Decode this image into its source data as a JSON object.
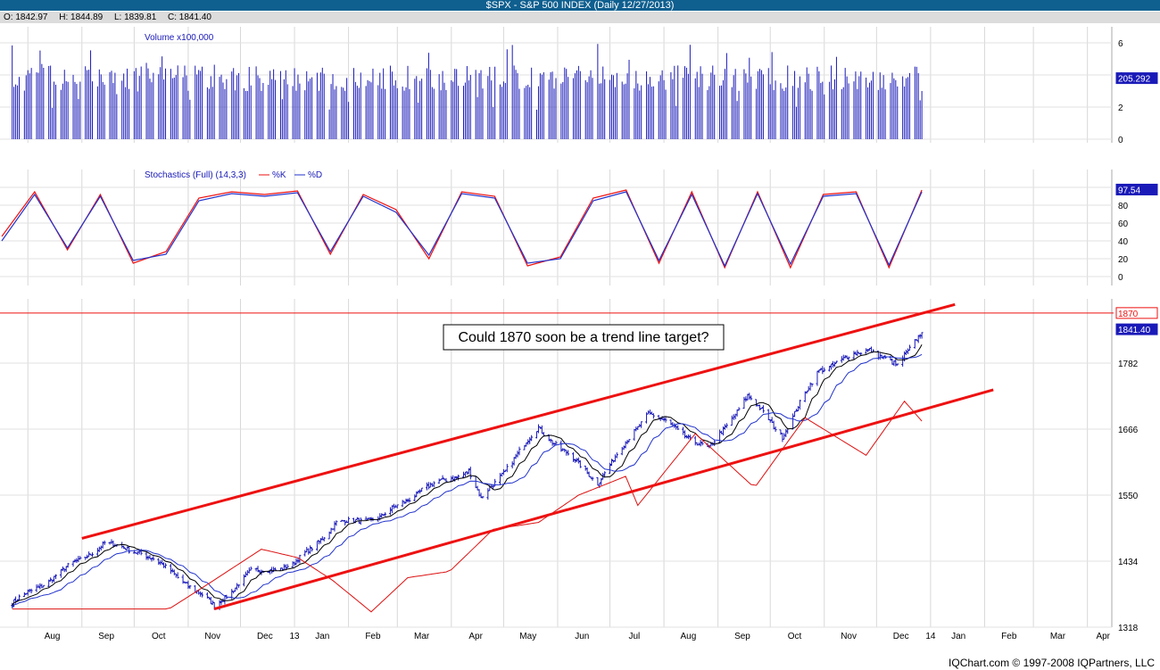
{
  "title": "$SPX - S&P 500 INDEX (Daily 12/27/2013)",
  "ohlc": {
    "open": "O: 1842.97",
    "high": "H: 1844.89",
    "low": "L: 1839.81",
    "close": "C: 1841.40"
  },
  "footer": "IQChart.com © 1997-2008 IQPartners, LLC",
  "colors": {
    "title_bg": "#0f5f8f",
    "bars": "#1a1ab8",
    "ma_short": "#000000",
    "ma_mid": "#2233cc",
    "ma_long": "#dd1111",
    "trend": "#ee1111",
    "stoch_k": "#ee1111",
    "stoch_d": "#2233cc"
  },
  "chart_data": [
    {
      "type": "bar",
      "title": "Volume x100,000",
      "y_ticks": [
        "6",
        "4",
        "2",
        "0"
      ],
      "ylim": [
        0,
        7
      ],
      "last_value_label": "205.292",
      "approx_level": 3.8
    },
    {
      "type": "line",
      "title": "Stochastics (Full) (14,3,3)",
      "series": [
        {
          "name": "%K",
          "color": "#ee1111"
        },
        {
          "name": "%D",
          "color": "#2233cc"
        }
      ],
      "y_ticks": [
        "100",
        "80",
        "60",
        "40",
        "20",
        "0"
      ],
      "ylim": [
        0,
        100
      ],
      "last_value_label": "97.54",
      "x": [
        "Aug",
        "Sep",
        "Oct",
        "Nov",
        "Dec",
        "13",
        "Jan",
        "Feb",
        "Mar",
        "Apr",
        "May",
        "Jun",
        "Jul",
        "Aug",
        "Sep",
        "Oct",
        "Nov",
        "Dec",
        "14"
      ],
      "k_values": [
        45,
        95,
        30,
        92,
        15,
        28,
        88,
        95,
        92,
        96,
        25,
        92,
        75,
        20,
        95,
        90,
        12,
        22,
        88,
        97,
        15,
        95,
        10,
        95,
        10,
        92,
        95,
        10,
        97
      ],
      "d_values": [
        40,
        92,
        32,
        90,
        18,
        25,
        85,
        93,
        90,
        94,
        28,
        90,
        72,
        24,
        93,
        88,
        15,
        20,
        85,
        95,
        18,
        92,
        12,
        93,
        14,
        90,
        93,
        13,
        95
      ]
    },
    {
      "type": "line",
      "title": "",
      "y_ticks": [
        "1318",
        "1434",
        "1550",
        "1666",
        "1782",
        "1841.40",
        "1870"
      ],
      "ylim": [
        1318,
        1900
      ],
      "last_value_label": "1841.40",
      "horizontal_line": 1870,
      "annotation": "Could 1870 soon be a trend line target?",
      "x_labels": [
        "Aug",
        "Sep",
        "Oct",
        "Nov",
        "Dec",
        "13",
        "Jan",
        "Feb",
        "Mar",
        "Apr",
        "May",
        "Jun",
        "Jul",
        "Aug",
        "Sep",
        "Oct",
        "Nov",
        "Dec",
        "14",
        "Jan",
        "Feb",
        "Mar",
        "Apr"
      ],
      "price_x": [
        "2012-07-23",
        "2012-08-15",
        "2012-09-14",
        "2012-10-05",
        "2012-10-25",
        "2012-11-16",
        "2012-12-07",
        "2012-12-31",
        "2013-01-25",
        "2013-02-20",
        "2013-03-15",
        "2013-04-11",
        "2013-04-18",
        "2013-05-21",
        "2013-06-24",
        "2013-07-23",
        "2013-08-27",
        "2013-09-18",
        "2013-10-08",
        "2013-10-29",
        "2013-11-27",
        "2013-12-13",
        "2013-12-27"
      ],
      "price_y": [
        1360,
        1405,
        1465,
        1450,
        1410,
        1355,
        1415,
        1426,
        1500,
        1512,
        1560,
        1593,
        1542,
        1668,
        1573,
        1696,
        1630,
        1725,
        1655,
        1770,
        1808,
        1775,
        1841
      ],
      "trend_upper": [
        {
          "x": "2012-09-01",
          "y": 1474
        },
        {
          "x": "2014-01-15",
          "y": 1885
        }
      ],
      "trend_lower": [
        {
          "x": "2012-11-16",
          "y": 1350
        },
        {
          "x": "2014-02-06",
          "y": 1735
        }
      ]
    }
  ]
}
